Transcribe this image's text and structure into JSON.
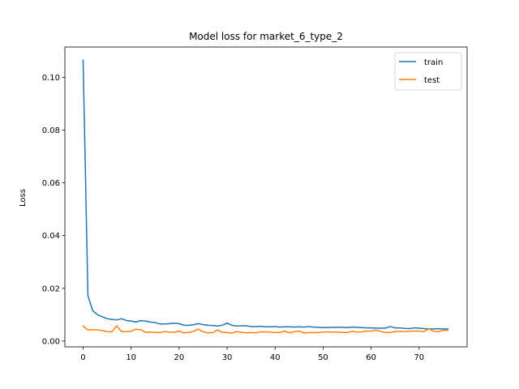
{
  "chart_data": {
    "type": "line",
    "title": "Model loss for market_6_type_2",
    "xlabel": "",
    "ylabel": "Loss",
    "xlim": [
      -3.8,
      80.0
    ],
    "ylim": [
      -0.0022,
      0.1115
    ],
    "xticks": [
      0,
      10,
      20,
      30,
      40,
      50,
      60,
      70
    ],
    "yticks": [
      0.0,
      0.02,
      0.04,
      0.06,
      0.08,
      0.1
    ],
    "ytick_labels": [
      "0.00",
      "0.02",
      "0.04",
      "0.06",
      "0.08",
      "0.10"
    ],
    "grid": false,
    "legend": "top-right",
    "series": [
      {
        "name": "train",
        "color": "#1f77b4",
        "values": [
          0.1065,
          0.0172,
          0.0115,
          0.01,
          0.0092,
          0.0085,
          0.0082,
          0.008,
          0.0085,
          0.0078,
          0.0076,
          0.0072,
          0.0077,
          0.0076,
          0.0072,
          0.007,
          0.0065,
          0.0065,
          0.0066,
          0.0068,
          0.0066,
          0.006,
          0.006,
          0.0062,
          0.0066,
          0.0062,
          0.006,
          0.0059,
          0.0057,
          0.006,
          0.0068,
          0.006,
          0.0057,
          0.0058,
          0.0058,
          0.0055,
          0.0055,
          0.0056,
          0.0054,
          0.0054,
          0.0055,
          0.0053,
          0.0054,
          0.0054,
          0.0053,
          0.0054,
          0.0053,
          0.0055,
          0.0053,
          0.0052,
          0.0051,
          0.0051,
          0.0052,
          0.0052,
          0.0052,
          0.0051,
          0.0053,
          0.0052,
          0.0051,
          0.005,
          0.005,
          0.0049,
          0.0049,
          0.0049,
          0.0055,
          0.005,
          0.005,
          0.0048,
          0.0047,
          0.005,
          0.0049,
          0.0047,
          0.0046,
          0.0046,
          0.0047,
          0.0046,
          0.0046
        ]
      },
      {
        "name": "test",
        "color": "#ff7f0e",
        "values": [
          0.0057,
          0.0042,
          0.0043,
          0.0042,
          0.004,
          0.0036,
          0.0035,
          0.0057,
          0.0036,
          0.0036,
          0.0037,
          0.0045,
          0.0043,
          0.0033,
          0.0034,
          0.0033,
          0.0032,
          0.0036,
          0.0034,
          0.0033,
          0.0038,
          0.0031,
          0.0033,
          0.0037,
          0.0045,
          0.0035,
          0.0031,
          0.0032,
          0.0042,
          0.0033,
          0.0032,
          0.003,
          0.0036,
          0.0033,
          0.0031,
          0.0032,
          0.0031,
          0.0035,
          0.0035,
          0.0034,
          0.0032,
          0.0033,
          0.0038,
          0.0031,
          0.0036,
          0.0038,
          0.0031,
          0.0032,
          0.0032,
          0.0032,
          0.0034,
          0.0035,
          0.0034,
          0.0034,
          0.0033,
          0.0032,
          0.0037,
          0.0034,
          0.0035,
          0.0038,
          0.0038,
          0.0041,
          0.0037,
          0.0032,
          0.0033,
          0.0036,
          0.0037,
          0.0036,
          0.0037,
          0.0038,
          0.0038,
          0.0036,
          0.0047,
          0.0037,
          0.0036,
          0.0041,
          0.0041
        ]
      }
    ]
  }
}
